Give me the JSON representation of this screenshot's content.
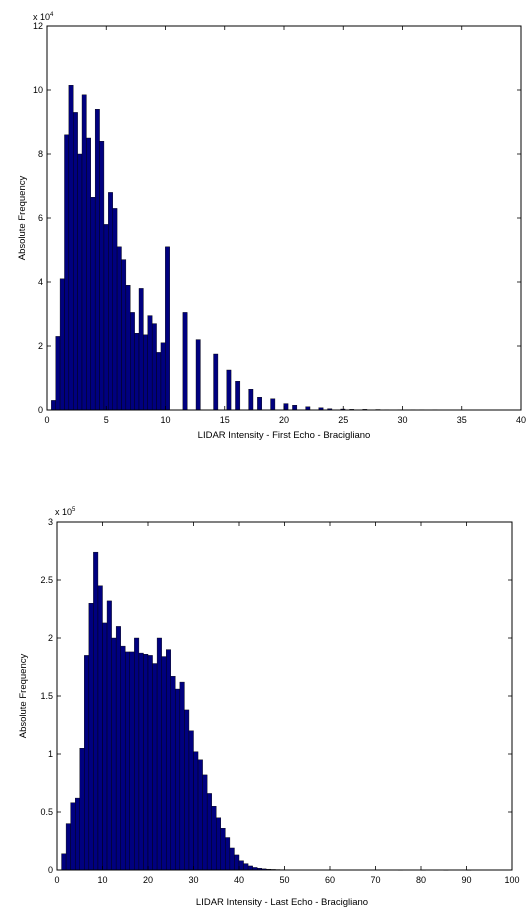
{
  "chart_data": [
    {
      "type": "bar",
      "subtype": "histogram",
      "xlabel": "LIDAR Intensity - First Echo - Bracigliano",
      "ylabel": "Absolute Frequency",
      "xlim": [
        0,
        40
      ],
      "ylim": [
        0,
        120000
      ],
      "x_ticks": [
        "0",
        "5",
        "10",
        "15",
        "20",
        "25",
        "30",
        "35",
        "40"
      ],
      "y_ticks": [
        "0",
        "2",
        "4",
        "6",
        "8",
        "10",
        "12"
      ],
      "y_multiplier_base": "x 10",
      "y_multiplier_exp": "4",
      "bar_color": "#00007f",
      "edge_color": "#000000",
      "bin_width": 0.37,
      "x": [
        0.55,
        0.92,
        1.29,
        1.66,
        2.03,
        2.4,
        2.77,
        3.14,
        3.51,
        3.88,
        4.25,
        4.62,
        4.99,
        5.36,
        5.73,
        6.1,
        6.47,
        6.84,
        7.21,
        7.58,
        7.95,
        8.32,
        8.69,
        9.06,
        9.43,
        9.8,
        10.17,
        10.54,
        10.91,
        11.28,
        11.65,
        12.02,
        12.39,
        12.76,
        13.13,
        13.5,
        13.87,
        14.24,
        14.61,
        14.98,
        15.35,
        15.72,
        16.09,
        16.46,
        16.83,
        17.2,
        17.57,
        17.94,
        18.31,
        18.68,
        19.05,
        19.42,
        19.79,
        20.16,
        20.53,
        20.9,
        21.27,
        21.64,
        22.01,
        22.38,
        22.75,
        23.12,
        23.49,
        23.86,
        24.23,
        24.6,
        24.97,
        25.34,
        25.71,
        26.08,
        26.45,
        26.82,
        27.19,
        27.56,
        27.93,
        28.3,
        28.67,
        29.04,
        29.41,
        29.78,
        30.15,
        30.52,
        30.89,
        31.26,
        31.63,
        32.0,
        32.37,
        32.74,
        33.11,
        33.48,
        33.85,
        34.22,
        34.59,
        34.96,
        35.33,
        35.7,
        36.07,
        36.44,
        36.81
      ],
      "values": [
        3000,
        23000,
        41000,
        86000,
        101500,
        93000,
        80000,
        98500,
        85000,
        66500,
        94000,
        84000,
        58000,
        68000,
        63000,
        51000,
        47000,
        39000,
        30500,
        24000,
        38000,
        23500,
        29500,
        27000,
        18000,
        21000,
        51000,
        0,
        0,
        0,
        30500,
        0,
        0,
        22000,
        0,
        0,
        0,
        17500,
        0,
        0,
        12500,
        0,
        9000,
        0,
        0,
        6500,
        0,
        4000,
        0,
        0,
        3500,
        0,
        0,
        2000,
        0,
        1500,
        0,
        0,
        1000,
        0,
        0,
        700,
        0,
        400,
        0,
        0,
        300,
        0,
        200,
        0,
        0,
        200,
        0,
        0,
        150,
        0,
        100,
        0,
        0,
        100,
        0,
        0,
        100,
        0,
        100,
        0,
        0,
        100,
        0,
        0,
        50,
        0,
        0,
        50,
        0,
        0,
        50,
        0,
        30
      ]
    },
    {
      "type": "bar",
      "subtype": "histogram",
      "xlabel": "LIDAR Intensity - Last Echo - Bracigliano",
      "ylabel": "Absolute Frequency",
      "xlim": [
        0,
        100
      ],
      "ylim": [
        0,
        300000
      ],
      "x_ticks": [
        "0",
        "10",
        "20",
        "30",
        "40",
        "50",
        "60",
        "70",
        "80",
        "90",
        "100"
      ],
      "y_ticks": [
        "0",
        "0.5",
        "1",
        "1.5",
        "2",
        "2.5",
        "3"
      ],
      "y_multiplier_base": "x 10",
      "y_multiplier_exp": "5",
      "bar_color": "#00007f",
      "edge_color": "#000000",
      "bin_width": 1.0,
      "x": [
        1.5,
        2.5,
        3.5,
        4.5,
        5.5,
        6.5,
        7.5,
        8.5,
        9.5,
        10.5,
        11.5,
        12.5,
        13.5,
        14.5,
        15.5,
        16.5,
        17.5,
        18.5,
        19.5,
        20.5,
        21.5,
        22.5,
        23.5,
        24.5,
        25.5,
        26.5,
        27.5,
        28.5,
        29.5,
        30.5,
        31.5,
        32.5,
        33.5,
        34.5,
        35.5,
        36.5,
        37.5,
        38.5,
        39.5,
        40.5,
        41.5,
        42.5,
        43.5,
        44.5,
        45.5,
        46.5,
        47.5,
        48.5,
        49.5,
        50.5,
        55.5,
        60.5,
        65.5,
        70.5,
        75.5,
        80.5,
        85.5,
        90.5
      ],
      "values": [
        14000,
        40000,
        58000,
        62000,
        105000,
        185000,
        230000,
        274000,
        245000,
        213000,
        232000,
        200000,
        210000,
        193000,
        188000,
        188000,
        200000,
        187000,
        186000,
        185000,
        178000,
        200000,
        184000,
        190000,
        167000,
        156000,
        162000,
        138000,
        120000,
        102000,
        95000,
        82000,
        66000,
        55000,
        45000,
        36000,
        28000,
        19000,
        13000,
        8000,
        5500,
        3500,
        2200,
        1500,
        1000,
        700,
        500,
        400,
        300,
        250,
        150,
        120,
        100,
        80,
        60,
        50,
        40,
        30
      ]
    }
  ]
}
